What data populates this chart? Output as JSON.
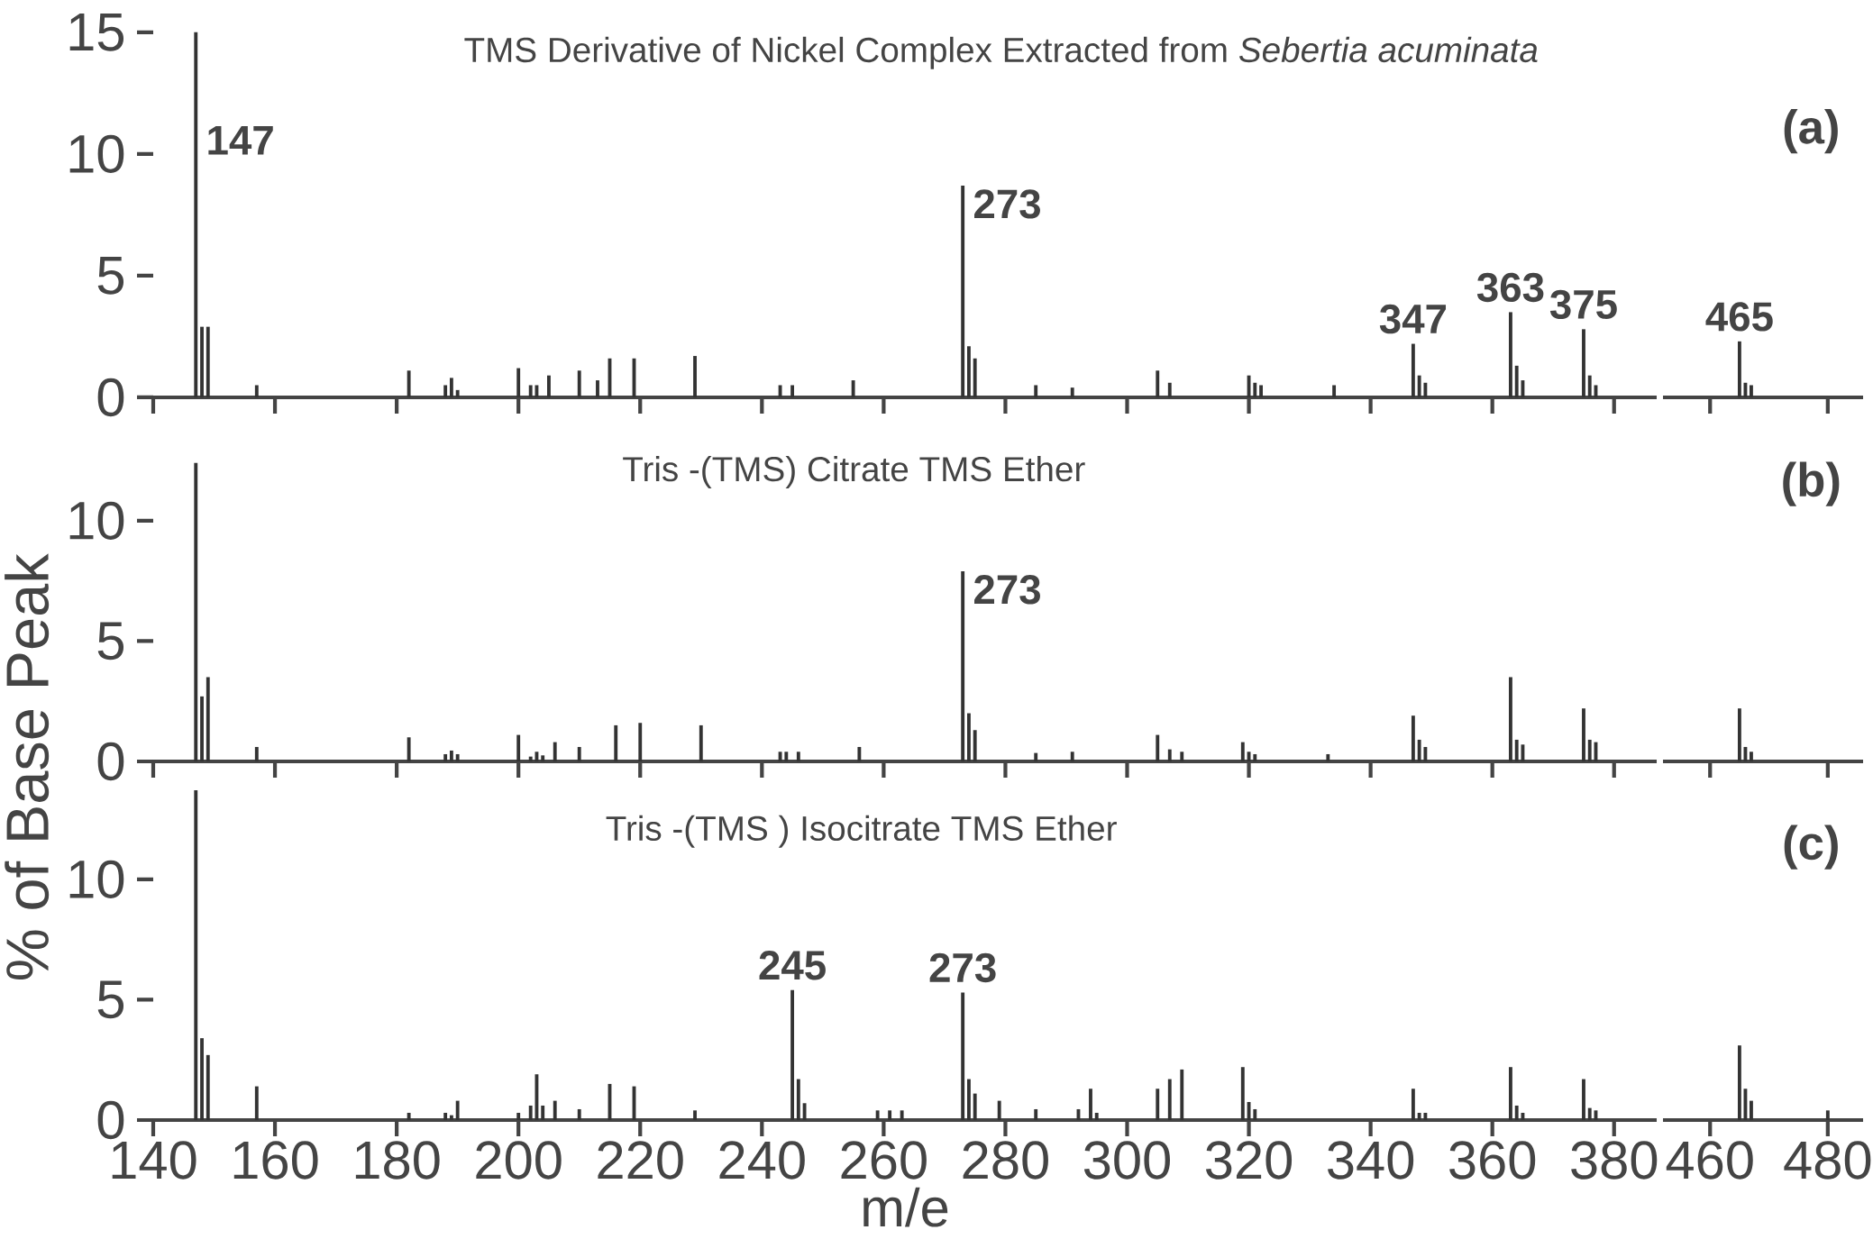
{
  "chart_data": [
    {
      "type": "bar",
      "title": "TMS Derivative of Nickel Complex Extracted from *Sebertia acuminata*",
      "color": "#333333",
      "x": [
        147,
        148,
        149,
        157,
        182,
        188,
        189,
        190,
        200,
        202,
        203,
        205,
        210,
        213,
        215,
        219,
        229,
        243,
        245,
        255,
        273,
        274,
        275,
        285,
        291,
        305,
        307,
        320,
        321,
        322,
        334,
        347,
        348,
        349,
        363,
        364,
        365,
        375,
        376,
        377
      ],
      "values": [
        15,
        2.9,
        2.9,
        0.5,
        1.1,
        0.5,
        0.8,
        0.3,
        1.2,
        0.5,
        0.5,
        0.9,
        1.1,
        0.7,
        1.6,
        1.6,
        1.7,
        0.5,
        0.5,
        0.7,
        8.7,
        2.1,
        1.6,
        0.5,
        0.4,
        1.1,
        0.6,
        0.9,
        0.6,
        0.5,
        0.5,
        2.2,
        0.9,
        0.6,
        3.5,
        1.3,
        0.7,
        2.8,
        0.9,
        0.5
      ],
      "xlim": [
        140,
        387
      ],
      "xticks": [
        140,
        160,
        180,
        200,
        220,
        240,
        260,
        280,
        300,
        320,
        340,
        360,
        380
      ],
      "ylim": [
        0,
        15.4
      ],
      "yticks": [
        0,
        5,
        10,
        15
      ],
      "tick_labels": "y",
      "annotations": [
        {
          "text": "147",
          "x": 147,
          "y": 15
        },
        {
          "text": "273",
          "x": 273,
          "y": 8.7
        },
        {
          "text": "347",
          "x": 347,
          "y": 2.2
        },
        {
          "text": "363",
          "x": 363,
          "y": 3.5
        },
        {
          "text": "375",
          "x": 375,
          "y": 2.8
        }
      ]
    },
    {
      "type": "bar",
      "color": "#333333",
      "x": [
        465,
        466,
        467
      ],
      "values": [
        2.3,
        0.6,
        0.5
      ],
      "xlim": [
        452,
        486
      ],
      "xticks": [
        460,
        480
      ],
      "ylim": [
        0,
        15
      ],
      "yticks": [
        0,
        5,
        10,
        15
      ],
      "tick_labels": false,
      "annotations": [
        {
          "text": "465",
          "x": 465,
          "y": 2.3
        },
        "(a)"
      ]
    },
    {
      "type": "bar",
      "title": "Tris -(TMS) Citrate TMS Ether",
      "ylabel": "% of Base Peak",
      "color": "#333333",
      "x": [
        147,
        148,
        149,
        157,
        182,
        188,
        189,
        190,
        200,
        202,
        203,
        204,
        206,
        210,
        216,
        220,
        230,
        243,
        244,
        246,
        256,
        273,
        274,
        275,
        285,
        291,
        305,
        307,
        309,
        319,
        320,
        321,
        333,
        347,
        348,
        349,
        363,
        364,
        365,
        375,
        376,
        377
      ],
      "values": [
        12.4,
        2.7,
        3.5,
        0.6,
        1.0,
        0.3,
        0.45,
        0.3,
        1.1,
        0.2,
        0.4,
        0.25,
        0.8,
        0.6,
        1.5,
        1.6,
        1.5,
        0.4,
        0.4,
        0.4,
        0.6,
        7.9,
        2.0,
        1.3,
        0.35,
        0.4,
        1.1,
        0.5,
        0.4,
        0.8,
        0.4,
        0.3,
        0.3,
        1.9,
        0.9,
        0.6,
        3.5,
        0.9,
        0.7,
        2.2,
        0.9,
        0.8
      ],
      "xlim": [
        140,
        387
      ],
      "xticks": [
        140,
        160,
        180,
        200,
        220,
        240,
        260,
        280,
        300,
        320,
        340,
        360,
        380
      ],
      "ylim": [
        0,
        12.8
      ],
      "yticks": [
        0,
        5,
        10
      ],
      "tick_labels": "y",
      "annotations": [
        {
          "text": "273",
          "x": 273,
          "y": 7.9
        }
      ]
    },
    {
      "type": "bar",
      "color": "#333333",
      "x": [
        465,
        466,
        467
      ],
      "values": [
        2.2,
        0.6,
        0.4
      ],
      "xlim": [
        452,
        486
      ],
      "xticks": [
        460,
        480
      ],
      "ylim": [
        0,
        10
      ],
      "yticks": [
        0,
        5,
        10
      ],
      "tick_labels": false,
      "annotations": [
        "(b)"
      ]
    },
    {
      "type": "bar",
      "title": "Tris -(TMS ) Isocitrate TMS Ether",
      "xlabel": "m/e",
      "color": "#333333",
      "x": [
        147,
        148,
        149,
        157,
        182,
        188,
        189,
        190,
        200,
        202,
        203,
        204,
        206,
        210,
        215,
        219,
        229,
        245,
        246,
        247,
        259,
        261,
        263,
        273,
        274,
        275,
        279,
        285,
        292,
        294,
        295,
        305,
        307,
        309,
        319,
        320,
        321,
        347,
        348,
        349,
        363,
        364,
        365,
        375,
        376,
        377
      ],
      "values": [
        13.7,
        3.4,
        2.7,
        1.4,
        0.3,
        0.3,
        0.2,
        0.8,
        0.3,
        0.6,
        1.9,
        0.6,
        0.8,
        0.45,
        1.5,
        1.4,
        0.4,
        5.4,
        1.7,
        0.7,
        0.4,
        0.4,
        0.4,
        5.3,
        1.7,
        1.1,
        0.8,
        0.45,
        0.45,
        1.3,
        0.3,
        1.3,
        1.7,
        2.1,
        2.2,
        0.75,
        0.45,
        1.3,
        0.3,
        0.3,
        2.2,
        0.6,
        0.3,
        1.7,
        0.5,
        0.4
      ],
      "xlim": [
        140,
        387
      ],
      "xticks": [
        140,
        160,
        180,
        200,
        220,
        240,
        260,
        280,
        300,
        320,
        340,
        360,
        380
      ],
      "ylim": [
        0,
        14
      ],
      "yticks": [
        0,
        5,
        10
      ],
      "annotations": [
        {
          "text": "245",
          "x": 245,
          "y": 5.4
        },
        {
          "text": "273",
          "x": 273,
          "y": 5.3
        }
      ]
    },
    {
      "type": "bar",
      "color": "#333333",
      "x": [
        465,
        466,
        467,
        480
      ],
      "values": [
        3.1,
        1.3,
        0.8,
        0.4
      ],
      "xlim": [
        452,
        486
      ],
      "xticks": [
        460,
        480
      ],
      "ylim": [
        0,
        10
      ],
      "yticks": [
        0,
        5,
        10
      ],
      "tick_labels": "x",
      "annotations": [
        "(c)"
      ]
    }
  ]
}
